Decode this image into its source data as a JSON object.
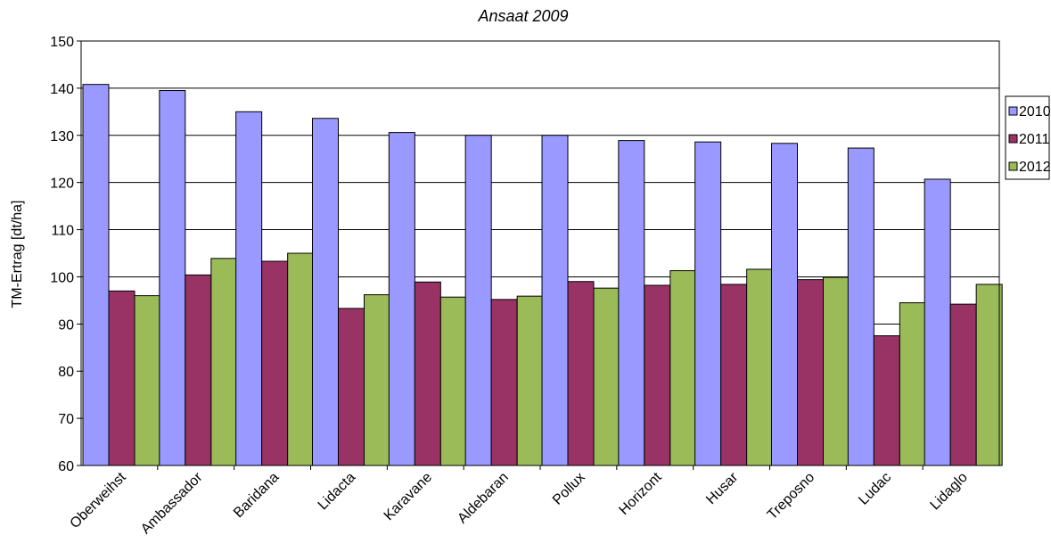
{
  "chart_data": {
    "type": "bar",
    "title": "Ansaat 2009",
    "xlabel": "",
    "ylabel": "TM-Ertrag [dt/ha]",
    "ylim": [
      60,
      150
    ],
    "ytick_step": 10,
    "grid": true,
    "legend_position": "right",
    "categories": [
      "Oberweihst",
      "Ambassador",
      "Baridana",
      "Lidacta",
      "Karavane",
      "Aldebaran",
      "Pollux",
      "Horizont",
      "Husar",
      "Treposno",
      "Ludac",
      "Lidaglo"
    ],
    "series": [
      {
        "name": "2010",
        "color": "#9999ff",
        "values": [
          140.8,
          139.5,
          135.0,
          133.6,
          130.6,
          130.0,
          130.0,
          128.9,
          128.6,
          128.3,
          127.3,
          120.7
        ]
      },
      {
        "name": "2011",
        "color": "#993366",
        "values": [
          97.0,
          100.4,
          103.3,
          93.3,
          98.9,
          95.2,
          99.0,
          98.2,
          98.4,
          99.4,
          87.5,
          94.2
        ]
      },
      {
        "name": "2012",
        "color": "#9bbb59",
        "values": [
          96.0,
          103.9,
          105.0,
          96.2,
          95.7,
          95.9,
          97.6,
          101.3,
          101.6,
          99.9,
          94.5,
          98.4
        ]
      }
    ]
  }
}
